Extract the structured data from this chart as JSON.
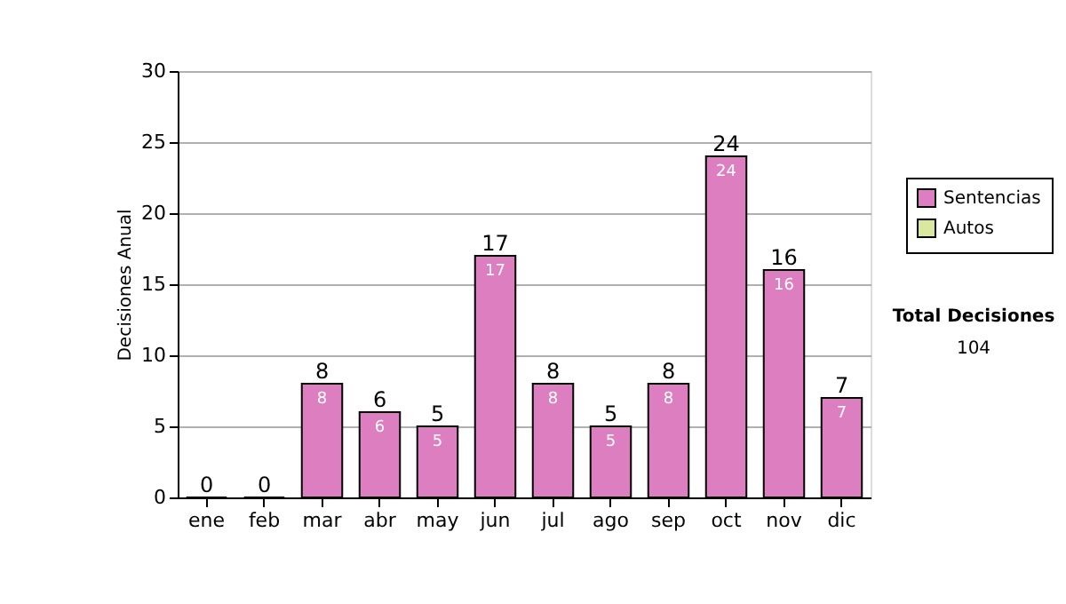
{
  "chart_data": {
    "type": "bar",
    "stacked": true,
    "ylabel": "Decisiones Anual",
    "categories": [
      "ene",
      "feb",
      "mar",
      "abr",
      "may",
      "jun",
      "jul",
      "ago",
      "sep",
      "oct",
      "nov",
      "dic"
    ],
    "series": [
      {
        "name": "Sentencias",
        "color": "#dc7ec0",
        "values": [
          0,
          0,
          8,
          6,
          5,
          17,
          8,
          5,
          8,
          24,
          16,
          7
        ],
        "value_labels": [
          null,
          null,
          "8",
          "6",
          "5",
          "17",
          "8",
          "5",
          "8",
          "24",
          "16",
          "7"
        ]
      },
      {
        "name": "Autos",
        "color": "#d8e8a0",
        "values": [
          null,
          null,
          null,
          null,
          null,
          null,
          null,
          null,
          null,
          null,
          null,
          null
        ]
      }
    ],
    "totals": [
      "0",
      "0",
      "8",
      "6",
      "5",
      "17",
      "8",
      "5",
      "8",
      "24",
      "16",
      "7"
    ],
    "ylim": [
      0,
      30
    ],
    "yticks": [
      0,
      5,
      10,
      15,
      20,
      25,
      30
    ],
    "grid": "y",
    "legend": "right",
    "annotations": [
      "Total Decisiones",
      "104"
    ]
  }
}
